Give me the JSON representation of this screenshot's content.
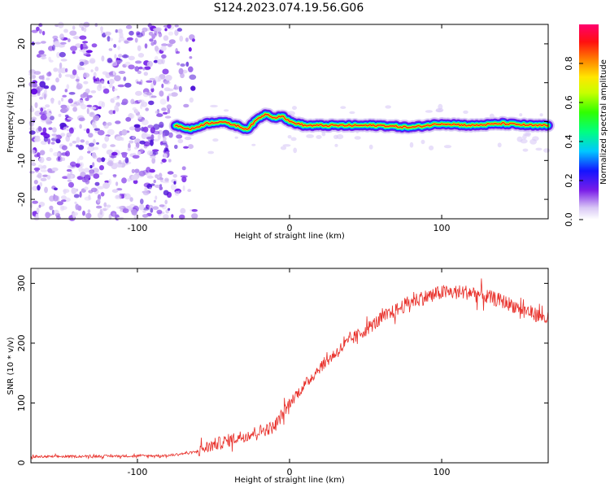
{
  "figure": {
    "title": "S124.2023.074.19.56.G06"
  },
  "chart_data": [
    {
      "type": "heatmap",
      "xlabel": "Height of straight line (km)",
      "ylabel": "Frequency (Hz)",
      "xlim": [
        -170,
        170
      ],
      "ylim": [
        -25,
        25
      ],
      "x_ticks": [
        "-100",
        "0",
        "100"
      ],
      "y_ticks": [
        "20",
        "10",
        "0",
        "-10",
        "-20"
      ],
      "colorbar": {
        "label": "Normalized spectral amplitude",
        "range": [
          0,
          1
        ],
        "ticks": [
          "0.0",
          "0.2",
          "0.4",
          "0.6",
          "0.8"
        ]
      },
      "noise_region_x": [
        -170,
        -62
      ],
      "signal_track": {
        "x": [
          -75,
          -65,
          -55,
          -45,
          -35,
          -28,
          -20,
          -15,
          -10,
          -5,
          0,
          10,
          20,
          40,
          60,
          80,
          100,
          120,
          140,
          160,
          170
        ],
        "y": [
          -1,
          -2,
          -0.5,
          0,
          -1,
          -2,
          1,
          2,
          1,
          1.5,
          0,
          -1,
          -1,
          -1,
          -1,
          -1.5,
          -0.5,
          -1,
          -0.5,
          -1,
          -1
        ]
      }
    },
    {
      "type": "line",
      "xlabel": "Height of straight line (km)",
      "ylabel": "SNR (10 * v/v)",
      "xlim": [
        -170,
        170
      ],
      "ylim": [
        0,
        325
      ],
      "x_ticks": [
        "-100",
        "0",
        "100"
      ],
      "y_ticks": [
        "300",
        "200",
        "100",
        "0"
      ],
      "color": "#e8302a",
      "trend": {
        "x": [
          -170,
          -80,
          -62,
          -50,
          -30,
          -10,
          0,
          20,
          40,
          60,
          80,
          100,
          120,
          140,
          170
        ],
        "y": [
          10,
          12,
          18,
          30,
          45,
          60,
          100,
          160,
          205,
          240,
          270,
          285,
          285,
          270,
          240
        ]
      }
    }
  ]
}
